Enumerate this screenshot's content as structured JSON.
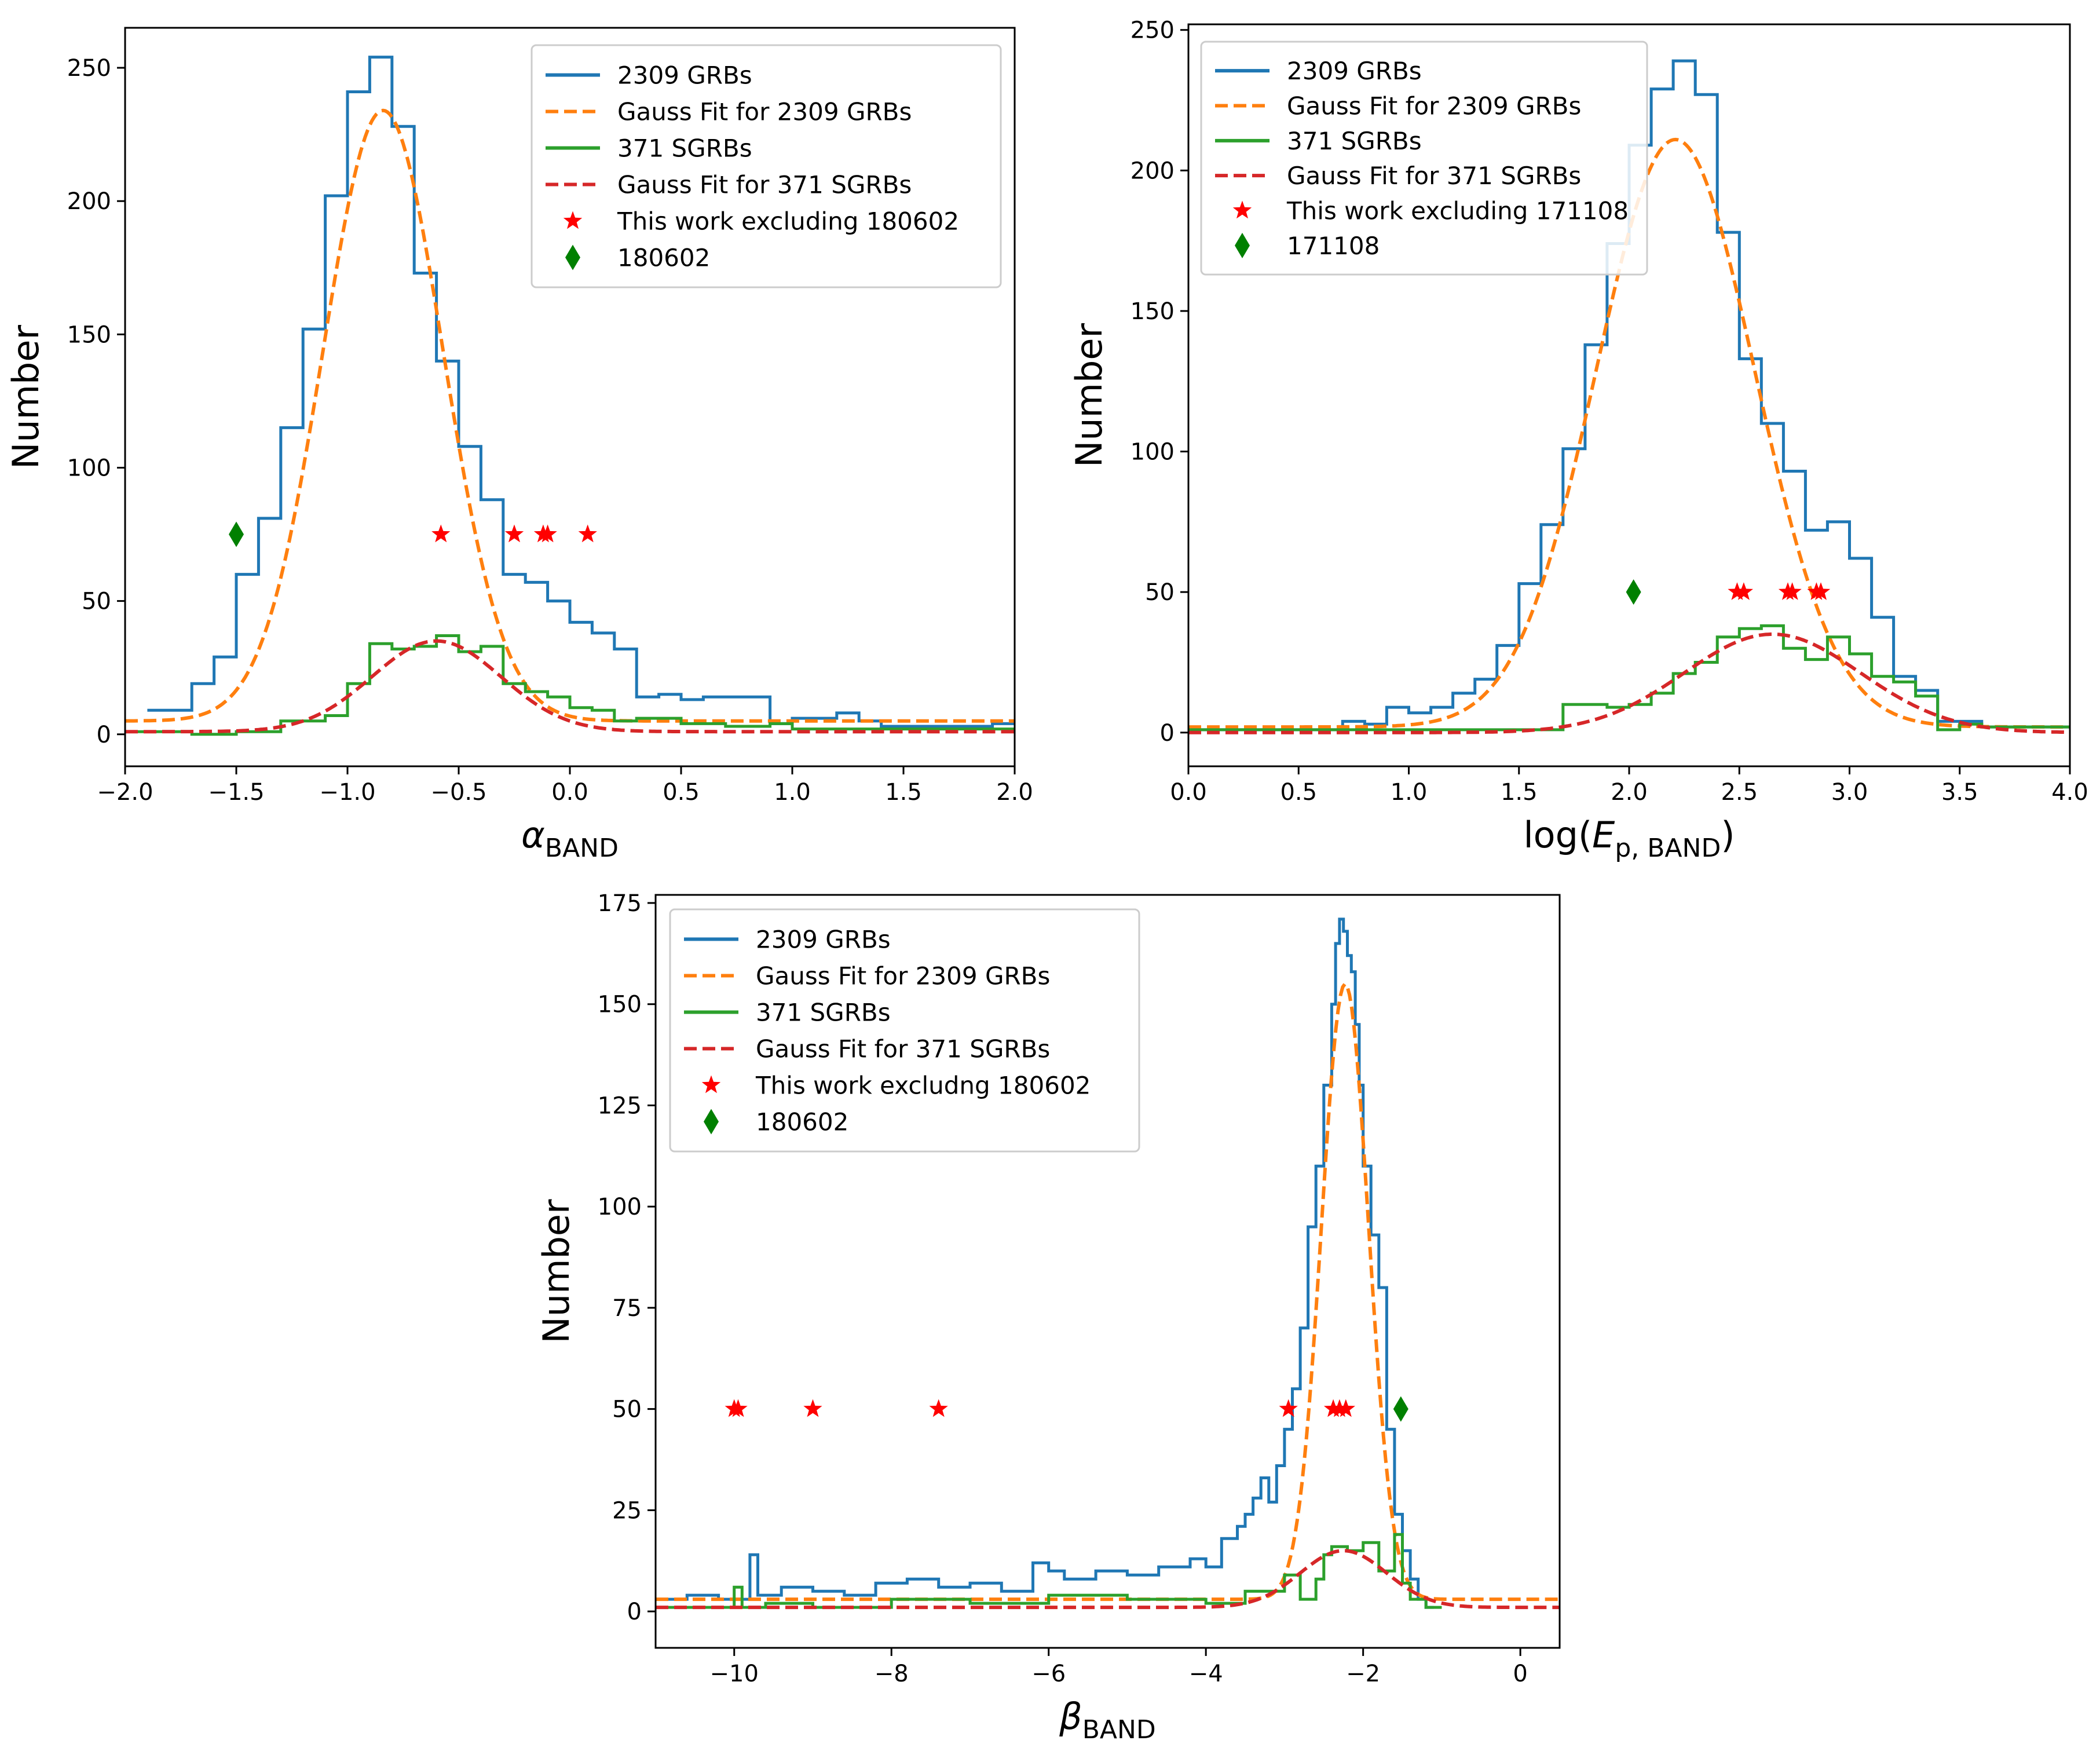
{
  "colors": {
    "blue": "#1f77b4",
    "orange": "#ff7f0e",
    "green": "#2ca02c",
    "red": "#d62728",
    "star": "#ff0000",
    "diamond": "#008000"
  },
  "chart_data": [
    {
      "id": "alpha",
      "type": "line",
      "xlabel": "α",
      "xlabel_sub": "BAND",
      "ylabel": "Number",
      "xlim": [
        -2.0,
        2.0
      ],
      "ylim": [
        -12,
        265
      ],
      "xticks": [
        -2.0,
        -1.5,
        -1.0,
        -0.5,
        0.0,
        0.5,
        1.0,
        1.5,
        2.0
      ],
      "xtick_labels": [
        "−2.0",
        "−1.5",
        "−1.0",
        "−0.5",
        "0.0",
        "0.5",
        "1.0",
        "1.5",
        "2.0"
      ],
      "yticks": [
        0,
        50,
        100,
        150,
        200,
        250
      ],
      "ytick_labels": [
        "0",
        "50",
        "100",
        "150",
        "200",
        "250"
      ],
      "legend_position": "top-right",
      "series": [
        {
          "name": "2309 GRBs",
          "kind": "step",
          "color": "blue",
          "bin_edges": [
            -1.9,
            -1.7,
            -1.6,
            -1.5,
            -1.4,
            -1.3,
            -1.2,
            -1.1,
            -1.0,
            -0.9,
            -0.8,
            -0.7,
            -0.6,
            -0.5,
            -0.4,
            -0.3,
            -0.2,
            -0.1,
            0.0,
            0.1,
            0.2,
            0.3,
            0.4,
            0.5,
            0.6,
            0.9,
            1.0,
            1.2,
            1.3,
            1.4,
            1.9,
            2.0
          ],
          "values": [
            9,
            19,
            29,
            60,
            81,
            115,
            152,
            202,
            241,
            254,
            228,
            173,
            140,
            108,
            88,
            60,
            57,
            50,
            42,
            38,
            32,
            14,
            15,
            13,
            14,
            4,
            6,
            8,
            5,
            3,
            4
          ]
        },
        {
          "name": "Gauss Fit for 2309 GRBs",
          "kind": "gauss",
          "color": "orange",
          "dashed": true,
          "amplitude": 229,
          "mean": -0.84,
          "sigma": 0.27,
          "offset": 5
        },
        {
          "name": "371 SGRBs",
          "kind": "step",
          "color": "green",
          "bin_edges": [
            -2.0,
            -1.7,
            -1.5,
            -1.3,
            -1.1,
            -1.0,
            -0.9,
            -0.8,
            -0.7,
            -0.6,
            -0.5,
            -0.4,
            -0.3,
            -0.2,
            -0.1,
            0.0,
            0.1,
            0.2,
            0.3,
            0.5,
            0.7,
            0.9,
            1.0,
            2.0
          ],
          "values": [
            1,
            0,
            1,
            5,
            7,
            19,
            34,
            32,
            33,
            37,
            31,
            33,
            19,
            16,
            14,
            10,
            9,
            5,
            6,
            4,
            3,
            4,
            2
          ]
        },
        {
          "name": "Gauss Fit for 371 SGRBs",
          "kind": "gauss",
          "color": "red",
          "dashed": true,
          "amplitude": 34,
          "mean": -0.6,
          "sigma": 0.29,
          "offset": 1
        },
        {
          "name": "This work excluding 180602",
          "kind": "stars",
          "color": "star",
          "x": [
            -0.58,
            -0.25,
            -0.12,
            -0.1,
            0.08
          ],
          "y": [
            75,
            75,
            75,
            75,
            75
          ]
        },
        {
          "name": "180602",
          "kind": "diamond",
          "color": "diamond",
          "x": [
            -1.5
          ],
          "y": [
            75
          ]
        }
      ]
    },
    {
      "id": "epeak",
      "type": "line",
      "xlabel": "log(",
      "xlabel_sub": "p, BAND",
      "xlabel_italic": "E",
      "xlabel_close": ")",
      "ylabel": "Number",
      "xlim": [
        0.0,
        4.0
      ],
      "ylim": [
        -12,
        252
      ],
      "xticks": [
        0.0,
        0.5,
        1.0,
        1.5,
        2.0,
        2.5,
        3.0,
        3.5,
        4.0
      ],
      "xtick_labels": [
        "0.0",
        "0.5",
        "1.0",
        "1.5",
        "2.0",
        "2.5",
        "3.0",
        "3.5",
        "4.0"
      ],
      "yticks": [
        0,
        50,
        100,
        150,
        200,
        250
      ],
      "ytick_labels": [
        "0",
        "50",
        "100",
        "150",
        "200",
        "250"
      ],
      "legend_position": "top-left",
      "series": [
        {
          "name": "2309 GRBs",
          "kind": "step",
          "color": "blue",
          "bin_edges": [
            0.0,
            0.7,
            0.8,
            0.9,
            1.0,
            1.1,
            1.2,
            1.3,
            1.4,
            1.5,
            1.6,
            1.7,
            1.8,
            1.9,
            2.0,
            2.1,
            2.2,
            2.3,
            2.4,
            2.5,
            2.6,
            2.7,
            2.8,
            2.9,
            3.0,
            3.1,
            3.2,
            3.3,
            3.4,
            3.5,
            3.6,
            4.0
          ],
          "values": [
            1,
            4,
            3,
            9,
            7,
            9,
            14,
            19,
            31,
            53,
            74,
            101,
            138,
            174,
            209,
            229,
            239,
            227,
            178,
            133,
            110,
            93,
            72,
            75,
            62,
            41,
            20,
            15,
            4,
            4,
            2
          ]
        },
        {
          "name": "Gauss Fit for 2309 GRBs",
          "kind": "gauss",
          "color": "orange",
          "dashed": true,
          "amplitude": 209,
          "mean": 2.21,
          "sigma": 0.36,
          "offset": 2
        },
        {
          "name": "371 SGRBs",
          "kind": "step",
          "color": "green",
          "bin_edges": [
            0.0,
            1.7,
            1.8,
            1.9,
            2.0,
            2.1,
            2.2,
            2.3,
            2.4,
            2.5,
            2.6,
            2.7,
            2.8,
            2.9,
            3.0,
            3.1,
            3.2,
            3.3,
            3.4,
            3.5,
            3.6,
            4.0
          ],
          "values": [
            1,
            10,
            10,
            9,
            10,
            14,
            21,
            25,
            34,
            37,
            38,
            30,
            26,
            34,
            28,
            20,
            18,
            13,
            1,
            3,
            2
          ]
        },
        {
          "name": "Gauss Fit for 371 SGRBs",
          "kind": "gauss",
          "color": "red",
          "dashed": true,
          "amplitude": 35,
          "mean": 2.65,
          "sigma": 0.4,
          "offset": 0
        },
        {
          "name": "This work excluding 171108",
          "kind": "stars",
          "color": "star",
          "x": [
            2.49,
            2.52,
            2.72,
            2.74,
            2.85,
            2.87
          ],
          "y": [
            50,
            50,
            50,
            50,
            50,
            50
          ]
        },
        {
          "name": "171108",
          "kind": "diamond",
          "color": "diamond",
          "x": [
            2.02
          ],
          "y": [
            50
          ]
        }
      ]
    },
    {
      "id": "beta",
      "type": "line",
      "xlabel": "β",
      "xlabel_sub": "BAND",
      "ylabel": "Number",
      "xlim": [
        -11.0,
        0.5
      ],
      "ylim": [
        -9,
        177
      ],
      "xticks": [
        -10,
        -8,
        -6,
        -4,
        -2,
        0
      ],
      "xtick_labels": [
        "−10",
        "−8",
        "−6",
        "−4",
        "−2",
        "0"
      ],
      "yticks": [
        0,
        25,
        50,
        75,
        100,
        125,
        150,
        175
      ],
      "ytick_labels": [
        "0",
        "25",
        "50",
        "75",
        "100",
        "125",
        "150",
        "175"
      ],
      "legend_position": "top-left",
      "series": [
        {
          "name": "2309 GRBs",
          "kind": "step",
          "color": "blue",
          "bin_edges": [
            -11.0,
            -10.6,
            -10.2,
            -9.8,
            -9.7,
            -9.4,
            -9.0,
            -8.6,
            -8.2,
            -7.8,
            -7.4,
            -7.0,
            -6.6,
            -6.2,
            -6.0,
            -5.8,
            -5.4,
            -5.0,
            -4.6,
            -4.2,
            -4.0,
            -3.8,
            -3.6,
            -3.5,
            -3.4,
            -3.3,
            -3.2,
            -3.1,
            -3.0,
            -2.9,
            -2.8,
            -2.7,
            -2.6,
            -2.5,
            -2.4,
            -2.35,
            -2.3,
            -2.25,
            -2.2,
            -2.15,
            -2.1,
            -2.05,
            -2.0,
            -1.9,
            -1.8,
            -1.7,
            -1.6,
            -1.5,
            -1.4,
            -1.3,
            -1.2,
            -1.1
          ],
          "values": [
            3,
            4,
            3,
            14,
            4,
            6,
            5,
            4,
            7,
            8,
            6,
            7,
            5,
            12,
            10,
            8,
            10,
            9,
            11,
            13,
            11,
            18,
            21,
            24,
            28,
            33,
            27,
            36,
            45,
            55,
            70,
            95,
            110,
            130,
            150,
            165,
            171,
            168,
            162,
            158,
            145,
            130,
            110,
            93,
            80,
            45,
            24,
            15,
            8,
            3,
            1
          ]
        },
        {
          "name": "Gauss Fit for 2309 GRBs",
          "kind": "gauss",
          "color": "orange",
          "dashed": true,
          "amplitude": 152,
          "mean": -2.23,
          "sigma": 0.3,
          "offset": 3
        },
        {
          "name": "371 SGRBs",
          "kind": "step",
          "color": "green",
          "bin_edges": [
            -11.0,
            -10.0,
            -9.9,
            -9.6,
            -9.0,
            -8.0,
            -7.0,
            -6.0,
            -5.0,
            -4.0,
            -3.5,
            -3.0,
            -2.8,
            -2.6,
            -2.5,
            -2.4,
            -2.2,
            -2.0,
            -1.8,
            -1.6,
            -1.5,
            -1.4,
            -1.2,
            -1.0
          ],
          "values": [
            1,
            6,
            1,
            2,
            1,
            3,
            2,
            4,
            3,
            2,
            5,
            9,
            3,
            8,
            14,
            16,
            15,
            17,
            10,
            19,
            7,
            3,
            1
          ]
        },
        {
          "name": "Gauss Fit for 371 SGRBs",
          "kind": "gauss",
          "color": "red",
          "dashed": true,
          "amplitude": 14,
          "mean": -2.25,
          "sigma": 0.55,
          "offset": 1
        },
        {
          "name": "This work excludng 180602",
          "kind": "stars",
          "color": "star",
          "x": [
            -10.0,
            -9.95,
            -9.0,
            -7.4,
            -2.95,
            -2.38,
            -2.3,
            -2.22
          ],
          "y": [
            50,
            50,
            50,
            50,
            50,
            50,
            50,
            50
          ]
        },
        {
          "name": "180602",
          "kind": "diamond",
          "color": "diamond",
          "x": [
            -1.52
          ],
          "y": [
            50
          ]
        }
      ]
    }
  ]
}
